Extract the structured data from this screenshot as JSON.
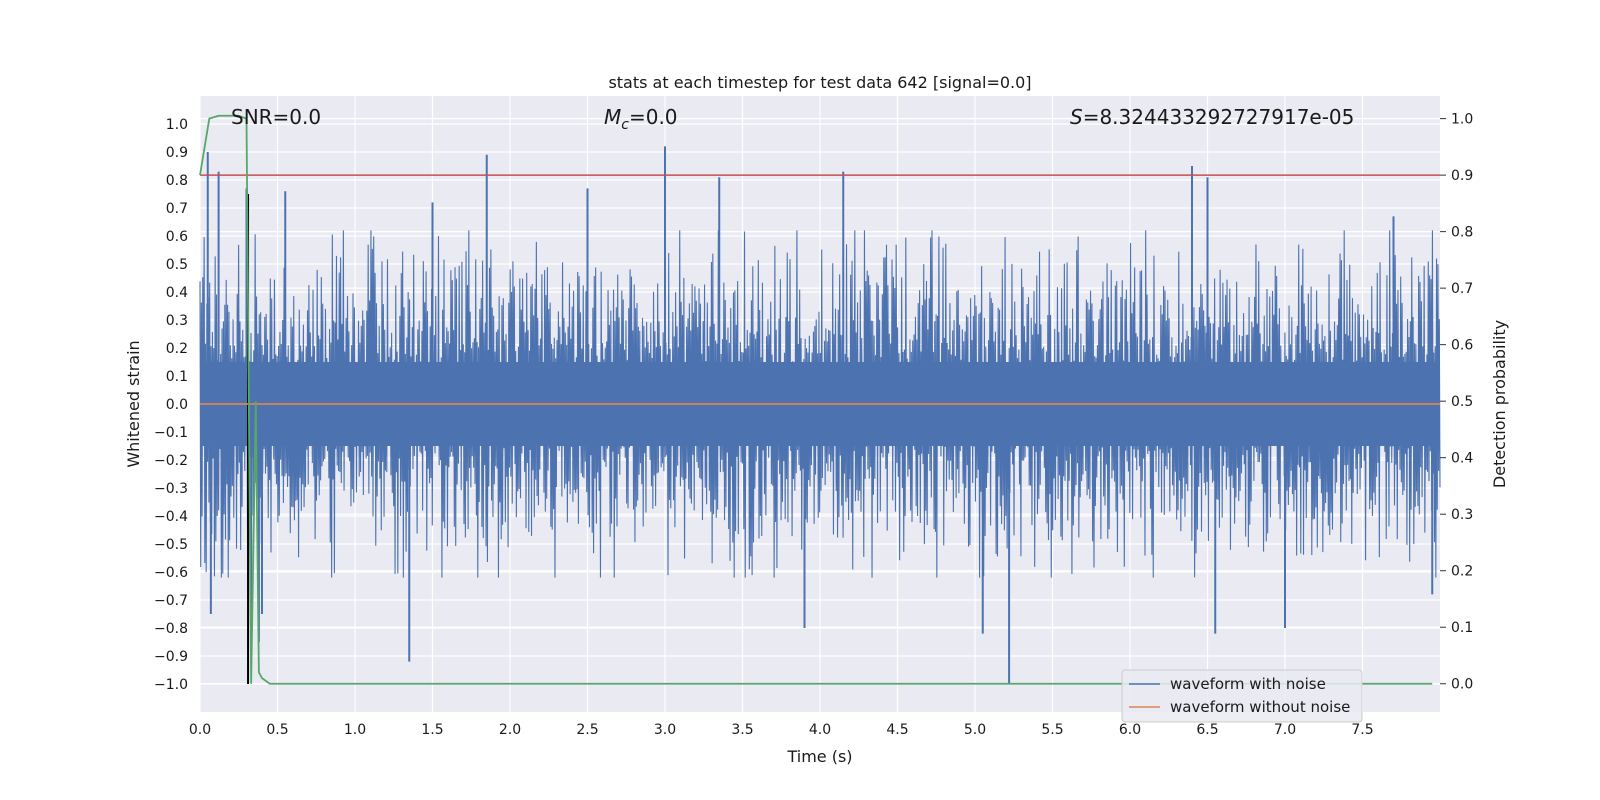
{
  "chart_data": {
    "type": "line",
    "title": "stats at each timestep for test data 642 [signal=0.0]",
    "xlabel": "Time (s)",
    "ylabel": "Whitened strain",
    "y2label": "Detection probability",
    "xlim": [
      0.0,
      8.0
    ],
    "ylim": [
      -1.1,
      1.1
    ],
    "y2lim": [
      -0.05,
      1.04
    ],
    "x_ticks": [
      "0.0",
      "0.5",
      "1.0",
      "1.5",
      "2.0",
      "2.5",
      "3.0",
      "3.5",
      "4.0",
      "4.5",
      "5.0",
      "5.5",
      "6.0",
      "6.5",
      "7.0",
      "7.5"
    ],
    "y_ticks": [
      "1.0",
      "0.9",
      "0.8",
      "0.7",
      "0.6",
      "0.5",
      "0.4",
      "0.3",
      "0.2",
      "0.1",
      "0.0",
      "−0.1",
      "−0.2",
      "−0.3",
      "−0.4",
      "−0.5",
      "−0.6",
      "−0.7",
      "−0.8",
      "−0.9",
      "−1.0"
    ],
    "y2_ticks": [
      "1.0",
      "0.9",
      "0.8",
      "0.7",
      "0.6",
      "0.5",
      "0.4",
      "0.3",
      "0.2",
      "0.1",
      "0.0"
    ],
    "grid": true,
    "legend_position": "lower-right",
    "annotations": {
      "snr": "SNR=0.0",
      "mc_symbol": "M",
      "mc_sub": "c",
      "mc_value": "=0.0",
      "s_symbol": "S",
      "s_value": "=8.324433292727917e-05"
    },
    "series": [
      {
        "name": "waveform with noise",
        "axis": "left",
        "color": "#4c72b0",
        "description": "dense noise, mostly within about ±0.45 with spikes",
        "spikes": [
          [
            0.05,
            0.9
          ],
          [
            0.07,
            -0.75
          ],
          [
            0.12,
            0.83
          ],
          [
            0.3,
            0.77
          ],
          [
            0.33,
            -0.77
          ],
          [
            0.38,
            -0.85
          ],
          [
            0.4,
            -0.75
          ],
          [
            0.55,
            0.76
          ],
          [
            1.35,
            -0.92
          ],
          [
            1.5,
            0.72
          ],
          [
            1.85,
            0.89
          ],
          [
            2.5,
            0.77
          ],
          [
            3.0,
            0.92
          ],
          [
            3.35,
            0.81
          ],
          [
            3.9,
            -0.8
          ],
          [
            4.15,
            0.83
          ],
          [
            5.05,
            -0.82
          ],
          [
            5.22,
            -1.0
          ],
          [
            6.4,
            0.85
          ],
          [
            6.5,
            0.81
          ],
          [
            6.55,
            -0.82
          ],
          [
            7.0,
            -0.8
          ],
          [
            7.7,
            0.67
          ],
          [
            7.95,
            -0.68
          ]
        ]
      },
      {
        "name": "waveform without noise",
        "axis": "left",
        "color": "#dd8452",
        "x": [
          0.0,
          8.0
        ],
        "y": [
          0.0,
          0.0
        ]
      },
      {
        "name": "",
        "axis": "right",
        "color": "#55a868",
        "x": [
          0.0,
          0.06,
          0.12,
          0.25,
          0.3,
          0.33,
          0.36,
          0.37,
          0.38,
          0.4,
          0.45,
          7.95
        ],
        "y": [
          0.9,
          1.0,
          1.005,
          1.005,
          1.0,
          0.0,
          0.5,
          0.25,
          0.02,
          0.01,
          0.0,
          0.0
        ]
      }
    ],
    "reference_lines": [
      {
        "type": "horizontal",
        "axis": "right",
        "y": 0.9,
        "color": "#c44e52"
      },
      {
        "type": "vertical",
        "x": 0.31,
        "y_from": -1.0,
        "y_to": 0.75,
        "color": "#000000"
      }
    ]
  }
}
